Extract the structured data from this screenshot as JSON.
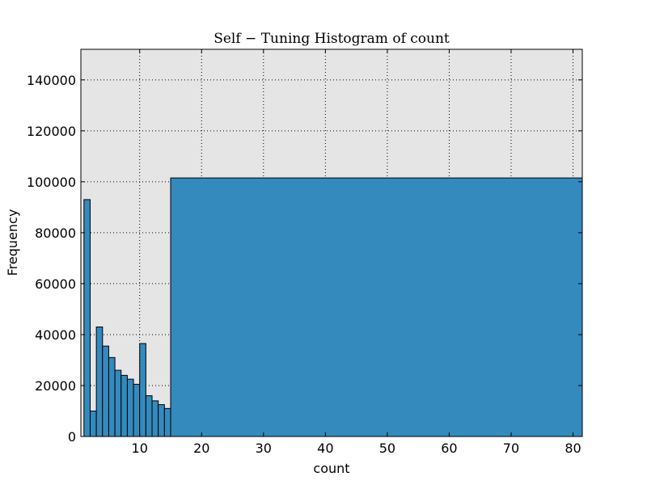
{
  "chart_data": {
    "type": "bar",
    "title": "Self − Tuning Histogram of count",
    "xlabel": "count",
    "ylabel": "Frequency",
    "xlim": [
      0.5,
      81.5
    ],
    "ylim": [
      0,
      152000
    ],
    "xticks": [
      10,
      20,
      30,
      40,
      50,
      60,
      70,
      80
    ],
    "yticks": [
      0,
      20000,
      40000,
      60000,
      80000,
      100000,
      120000,
      140000
    ],
    "grid": true,
    "background": "#e5e5e5",
    "bar_color": "#348abd",
    "bins": [
      {
        "start": 1,
        "end": 2,
        "value": 93000
      },
      {
        "start": 2,
        "end": 3,
        "value": 10000
      },
      {
        "start": 3,
        "end": 4,
        "value": 43000
      },
      {
        "start": 4,
        "end": 5,
        "value": 35500
      },
      {
        "start": 5,
        "end": 6,
        "value": 31000
      },
      {
        "start": 6,
        "end": 7,
        "value": 26000
      },
      {
        "start": 7,
        "end": 8,
        "value": 24000
      },
      {
        "start": 8,
        "end": 9,
        "value": 22500
      },
      {
        "start": 9,
        "end": 10,
        "value": 20500
      },
      {
        "start": 10,
        "end": 11,
        "value": 36500
      },
      {
        "start": 11,
        "end": 12,
        "value": 16000
      },
      {
        "start": 12,
        "end": 13,
        "value": 14000
      },
      {
        "start": 13,
        "end": 14,
        "value": 12500
      },
      {
        "start": 14,
        "end": 15,
        "value": 11000
      },
      {
        "start": 15,
        "end": 81.5,
        "value": 101500
      }
    ]
  }
}
